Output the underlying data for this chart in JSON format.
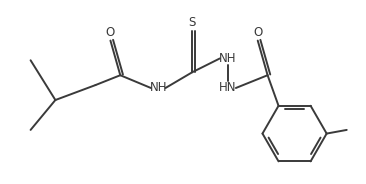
{
  "background_color": "#ffffff",
  "line_color": "#3a3a3a",
  "text_color": "#3a3a3a",
  "line_width": 1.4,
  "font_size": 8.5,
  "figsize": [
    3.66,
    1.84
  ],
  "dpi": 100,
  "xlim": [
    0,
    10
  ],
  "ylim": [
    0,
    5
  ]
}
